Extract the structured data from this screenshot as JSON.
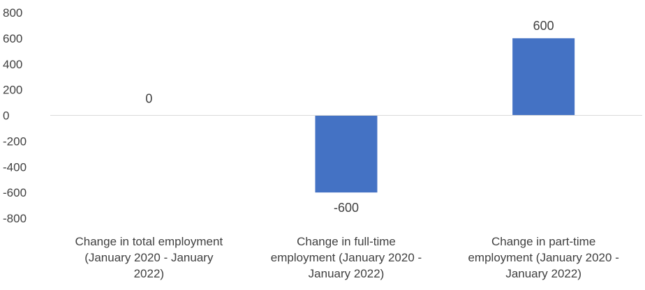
{
  "chart_data": {
    "type": "bar",
    "categories": [
      [
        "Change in total employment",
        "(January 2020 - January",
        "2022)"
      ],
      [
        "Change in full-time",
        "employment (January 2020 -",
        "January 2022)"
      ],
      [
        "Change in part-time",
        "employment (January 2020 -",
        "January 2022)"
      ]
    ],
    "values": [
      0,
      -600,
      600
    ],
    "data_labels": [
      "0",
      "-600",
      "600"
    ],
    "yticks": [
      800,
      600,
      400,
      200,
      0,
      -200,
      -400,
      -600,
      -800
    ],
    "ylim": [
      -800,
      800
    ],
    "grid": false,
    "legend": "none",
    "title": "",
    "xlabel": "",
    "ylabel": "",
    "colors": {
      "bar": "#4472C4",
      "axis": "#D9D9D9",
      "text": "#404040"
    }
  }
}
